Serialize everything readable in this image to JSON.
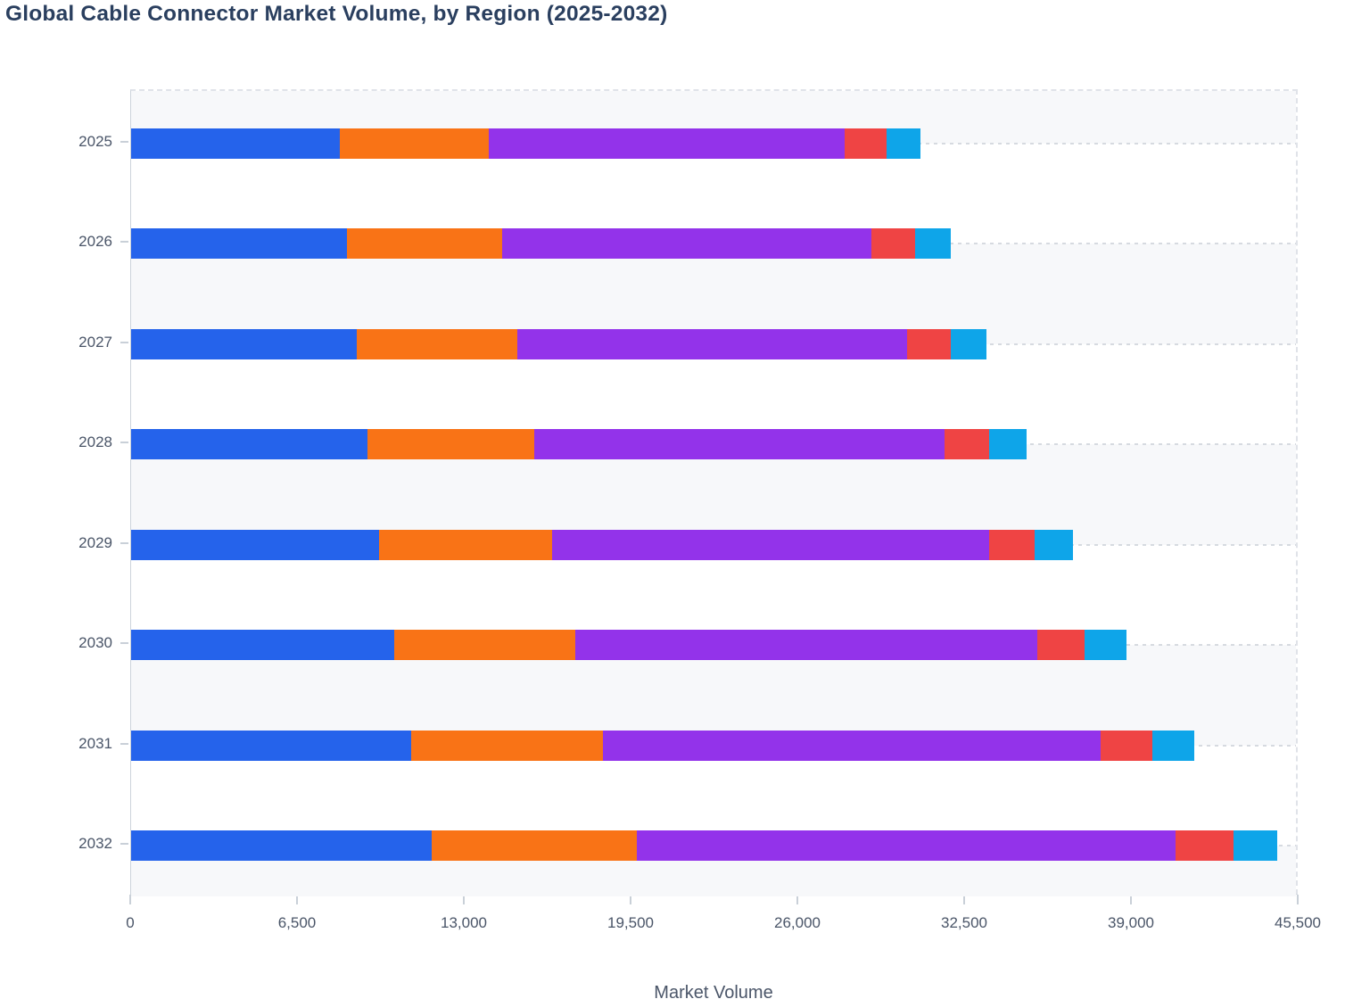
{
  "title": "Global Cable Connector Market Volume, by Region (2025-2032)",
  "chart_data": {
    "type": "bar",
    "orientation": "horizontal",
    "stacked": true,
    "title": "Global Cable Connector Market Volume, by Region (2025-2032)",
    "xlabel": "Market Volume",
    "ylabel": "",
    "categories": [
      "2025",
      "2026",
      "2027",
      "2028",
      "2029",
      "2030",
      "2031",
      "2032"
    ],
    "series": [
      {
        "name": "Blue segment",
        "color": "#2563eb",
        "values": [
          8150,
          8400,
          8800,
          9200,
          9650,
          10250,
          10900,
          11700
        ]
      },
      {
        "name": "Orange segment",
        "color": "#f97316",
        "values": [
          5800,
          6050,
          6250,
          6500,
          6750,
          7050,
          7500,
          8000
        ]
      },
      {
        "name": "Purple segment",
        "color": "#9333ea",
        "values": [
          13850,
          14400,
          15200,
          16000,
          17050,
          18000,
          19400,
          21000
        ]
      },
      {
        "name": "Red segment",
        "color": "#ef4444",
        "values": [
          1650,
          1700,
          1700,
          1750,
          1750,
          1850,
          2000,
          2250
        ]
      },
      {
        "name": "Cyan segment",
        "color": "#0ea5e9",
        "values": [
          1300,
          1400,
          1400,
          1450,
          1500,
          1650,
          1650,
          1700
        ]
      }
    ],
    "totals": [
      30750,
      31950,
      33350,
      34900,
      36700,
      38800,
      41450,
      44650
    ],
    "xlim": [
      0,
      45500
    ],
    "xticks": [
      0,
      6500,
      13000,
      19500,
      26000,
      32500,
      39000,
      45500
    ],
    "x_tick_labels": [
      "0",
      "6,500",
      "13,000",
      "19,500",
      "26,000",
      "32,500",
      "39,000",
      "45,500"
    ],
    "grid": "dashed horizontal line at each category; alternating light row bands",
    "legend_visible": false,
    "colors": {
      "title_text": "#2a3f5f",
      "tick_text": "#4a5568",
      "band_light": "#f7f8fa",
      "gridline": "#d6dae0",
      "axis_line": "#ccd3db"
    }
  }
}
